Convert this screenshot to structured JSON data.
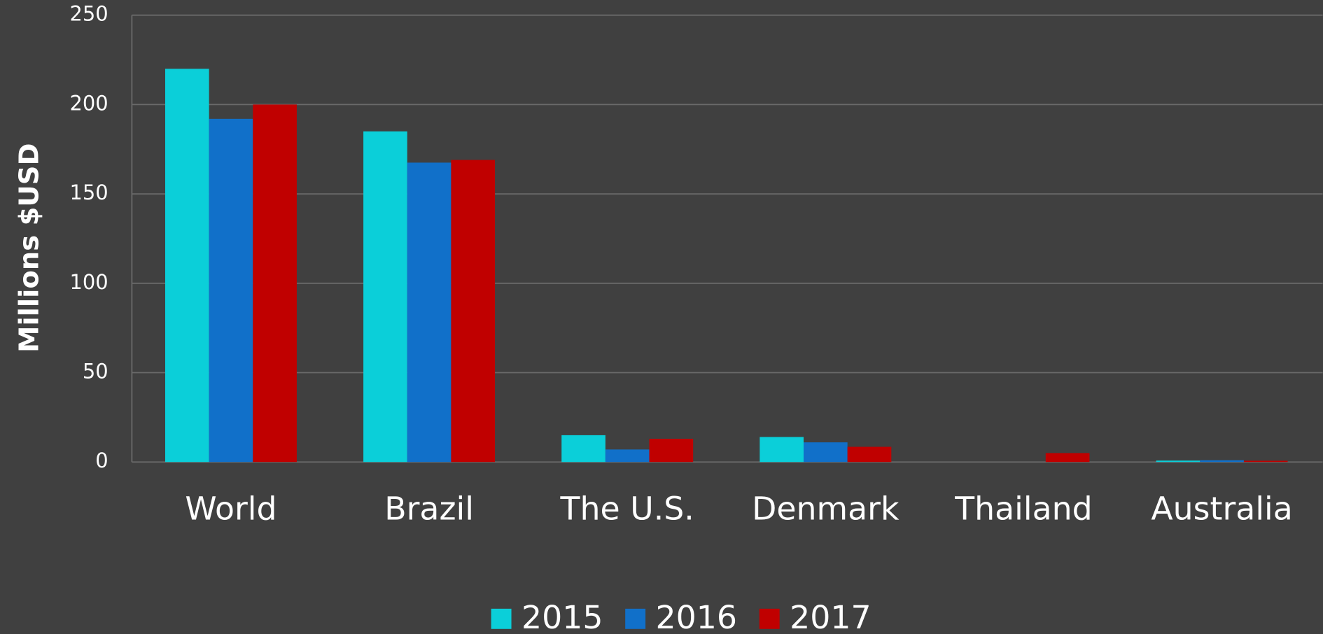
{
  "chart_data": {
    "type": "bar",
    "y_label": "Millions $USD",
    "categories": [
      "World",
      "Brazil",
      "The U.S.",
      "Denmark",
      "Thailand",
      "Australia"
    ],
    "series": [
      {
        "name": "2015",
        "color": "#0bcfd9",
        "values": [
          220,
          185,
          15,
          14,
          0,
          0.8
        ]
      },
      {
        "name": "2016",
        "color": "#1170c9",
        "values": [
          192,
          167.5,
          7,
          11,
          0,
          1
        ]
      },
      {
        "name": "2017",
        "color": "#c00000",
        "values": [
          200,
          169,
          13,
          8.5,
          5,
          0.7
        ]
      }
    ],
    "ylim": [
      0,
      250
    ],
    "yticks": [
      0,
      50,
      100,
      150,
      200,
      250
    ],
    "grid": true,
    "legend": "bottom"
  }
}
